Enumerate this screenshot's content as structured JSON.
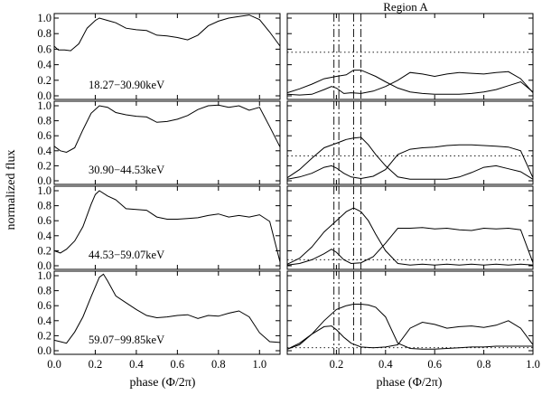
{
  "chart_data": {
    "type": "line",
    "layout": "4 rows x 2 columns",
    "ylabel": "normalized flux",
    "xlabel_left": "phase (Φ/2π)",
    "xlabel_right": "phase (Φ/2π)",
    "right_title": "Region A",
    "left_xticks": [
      "0.0",
      "0.2",
      "0.4",
      "0.6",
      "0.8",
      "1.0"
    ],
    "left_xtick_values": [
      0.0,
      0.2,
      0.4,
      0.6,
      0.8,
      1.0
    ],
    "right_xticks": [
      "0.2",
      "0.4",
      "0.6",
      "0.8",
      "1.0"
    ],
    "right_xtick_values": [
      0.2,
      0.4,
      0.6,
      0.8,
      1.0
    ],
    "yticks": [
      "0.0",
      "0.2",
      "0.4",
      "0.6",
      "0.8",
      "1.0"
    ],
    "ytick_values": [
      0.0,
      0.2,
      0.4,
      0.6,
      0.8,
      1.0
    ],
    "left_xlim": [
      0.0,
      1.1
    ],
    "right_xlim": [
      0.0,
      1.0
    ],
    "ylim": [
      0.0,
      1.05
    ],
    "vlines_dashed": [
      0.19,
      0.21,
      0.27,
      0.3
    ],
    "panels": [
      {
        "energy_label": "18.27−30.90keV",
        "pulse": {
          "x": [
            0.0,
            0.02,
            0.05,
            0.08,
            0.12,
            0.16,
            0.2,
            0.22,
            0.26,
            0.3,
            0.35,
            0.4,
            0.45,
            0.5,
            0.55,
            0.6,
            0.65,
            0.7,
            0.75,
            0.8,
            0.85,
            0.9,
            0.95,
            1.0,
            1.05,
            1.1
          ],
          "y": [
            0.64,
            0.59,
            0.59,
            0.58,
            0.67,
            0.87,
            0.97,
            1.0,
            0.97,
            0.94,
            0.87,
            0.85,
            0.84,
            0.78,
            0.77,
            0.75,
            0.72,
            0.78,
            0.9,
            0.96,
            1.0,
            1.02,
            1.04,
            0.98,
            0.82,
            0.64
          ]
        },
        "right_hline": 0.56,
        "component_a": {
          "x": [
            0.0,
            0.05,
            0.1,
            0.15,
            0.2,
            0.24,
            0.27,
            0.3,
            0.33,
            0.36,
            0.4,
            0.45,
            0.5,
            0.55,
            0.6,
            0.65,
            0.7,
            0.75,
            0.8,
            0.85,
            0.9,
            0.95,
            1.0
          ],
          "y": [
            0.04,
            0.09,
            0.15,
            0.22,
            0.25,
            0.27,
            0.33,
            0.33,
            0.29,
            0.25,
            0.18,
            0.1,
            0.05,
            0.03,
            0.02,
            0.02,
            0.02,
            0.03,
            0.05,
            0.08,
            0.13,
            0.18,
            0.05
          ]
        },
        "component_b": {
          "x": [
            0.0,
            0.05,
            0.1,
            0.15,
            0.18,
            0.2,
            0.23,
            0.26,
            0.3,
            0.35,
            0.4,
            0.45,
            0.5,
            0.55,
            0.6,
            0.65,
            0.7,
            0.75,
            0.8,
            0.85,
            0.9,
            0.95,
            1.0
          ],
          "y": [
            0.02,
            0.01,
            0.02,
            0.08,
            0.12,
            0.1,
            0.03,
            0.04,
            0.03,
            0.06,
            0.12,
            0.2,
            0.3,
            0.28,
            0.25,
            0.28,
            0.3,
            0.29,
            0.28,
            0.3,
            0.31,
            0.22,
            0.04
          ]
        }
      },
      {
        "energy_label": "30.90−44.53keV",
        "pulse": {
          "x": [
            0.0,
            0.03,
            0.06,
            0.1,
            0.14,
            0.18,
            0.22,
            0.26,
            0.3,
            0.35,
            0.4,
            0.45,
            0.5,
            0.55,
            0.6,
            0.65,
            0.7,
            0.75,
            0.8,
            0.85,
            0.9,
            0.95,
            1.0,
            1.05,
            1.1
          ],
          "y": [
            0.46,
            0.4,
            0.38,
            0.44,
            0.68,
            0.9,
            1.0,
            0.98,
            0.91,
            0.88,
            0.86,
            0.85,
            0.78,
            0.79,
            0.82,
            0.87,
            0.95,
            1.0,
            1.01,
            0.98,
            1.0,
            0.94,
            0.98,
            0.72,
            0.45
          ]
        },
        "right_hline": 0.33,
        "component_a": {
          "x": [
            0.0,
            0.05,
            0.1,
            0.15,
            0.2,
            0.24,
            0.27,
            0.3,
            0.33,
            0.36,
            0.4,
            0.45,
            0.5,
            0.55,
            0.6,
            0.65,
            0.7,
            0.75,
            0.8,
            0.85,
            0.9,
            0.95,
            1.0
          ],
          "y": [
            0.04,
            0.15,
            0.3,
            0.44,
            0.5,
            0.55,
            0.57,
            0.58,
            0.48,
            0.35,
            0.2,
            0.05,
            0.02,
            0.02,
            0.02,
            0.02,
            0.05,
            0.11,
            0.18,
            0.2,
            0.16,
            0.12,
            0.02
          ]
        },
        "component_b": {
          "x": [
            0.0,
            0.05,
            0.1,
            0.15,
            0.18,
            0.2,
            0.23,
            0.26,
            0.3,
            0.35,
            0.4,
            0.45,
            0.5,
            0.55,
            0.6,
            0.65,
            0.7,
            0.75,
            0.8,
            0.85,
            0.9,
            0.95,
            1.0
          ],
          "y": [
            0.02,
            0.05,
            0.1,
            0.18,
            0.2,
            0.17,
            0.1,
            0.05,
            0.03,
            0.06,
            0.15,
            0.35,
            0.42,
            0.44,
            0.45,
            0.47,
            0.48,
            0.48,
            0.47,
            0.46,
            0.45,
            0.4,
            0.04
          ]
        }
      },
      {
        "energy_label": "44.53−59.07keV",
        "pulse": {
          "x": [
            0.0,
            0.03,
            0.06,
            0.1,
            0.14,
            0.18,
            0.2,
            0.22,
            0.26,
            0.3,
            0.35,
            0.4,
            0.45,
            0.5,
            0.55,
            0.6,
            0.65,
            0.7,
            0.75,
            0.8,
            0.85,
            0.9,
            0.95,
            1.0,
            1.05,
            1.1
          ],
          "y": [
            0.2,
            0.17,
            0.22,
            0.33,
            0.52,
            0.82,
            0.95,
            1.0,
            0.93,
            0.88,
            0.76,
            0.75,
            0.74,
            0.65,
            0.62,
            0.62,
            0.63,
            0.64,
            0.67,
            0.69,
            0.65,
            0.67,
            0.65,
            0.68,
            0.59,
            0.05
          ]
        },
        "right_hline": 0.08,
        "component_a": {
          "x": [
            0.0,
            0.05,
            0.1,
            0.15,
            0.2,
            0.24,
            0.27,
            0.3,
            0.33,
            0.36,
            0.4,
            0.45,
            0.5,
            0.55,
            0.6,
            0.65,
            0.7,
            0.75,
            0.8,
            0.85,
            0.9,
            0.95,
            1.0
          ],
          "y": [
            0.02,
            0.1,
            0.25,
            0.45,
            0.6,
            0.72,
            0.77,
            0.72,
            0.6,
            0.42,
            0.2,
            0.03,
            0.01,
            0.02,
            0.01,
            0.02,
            0.01,
            0.02,
            0.01,
            0.02,
            0.01,
            0.02,
            0.01
          ]
        },
        "component_b": {
          "x": [
            0.0,
            0.05,
            0.1,
            0.15,
            0.18,
            0.2,
            0.23,
            0.26,
            0.3,
            0.35,
            0.4,
            0.45,
            0.5,
            0.55,
            0.6,
            0.65,
            0.7,
            0.75,
            0.8,
            0.85,
            0.9,
            0.95,
            1.0
          ],
          "y": [
            0.01,
            0.03,
            0.08,
            0.16,
            0.22,
            0.18,
            0.08,
            0.03,
            0.04,
            0.12,
            0.3,
            0.5,
            0.5,
            0.51,
            0.49,
            0.5,
            0.48,
            0.47,
            0.5,
            0.49,
            0.5,
            0.48,
            0.04
          ]
        }
      },
      {
        "energy_label": "59.07−99.85keV",
        "pulse": {
          "x": [
            0.0,
            0.03,
            0.06,
            0.1,
            0.14,
            0.18,
            0.22,
            0.24,
            0.26,
            0.3,
            0.35,
            0.4,
            0.45,
            0.5,
            0.55,
            0.6,
            0.65,
            0.7,
            0.75,
            0.8,
            0.85,
            0.9,
            0.95,
            1.0,
            1.05,
            1.1
          ],
          "y": [
            0.14,
            0.12,
            0.1,
            0.25,
            0.45,
            0.72,
            0.98,
            1.02,
            0.93,
            0.73,
            0.64,
            0.55,
            0.47,
            0.44,
            0.45,
            0.47,
            0.48,
            0.43,
            0.47,
            0.46,
            0.5,
            0.53,
            0.45,
            0.24,
            0.12,
            0.11
          ]
        },
        "right_hline": 0.04,
        "component_a": {
          "x": [
            0.0,
            0.05,
            0.1,
            0.15,
            0.2,
            0.24,
            0.27,
            0.3,
            0.33,
            0.36,
            0.4,
            0.45,
            0.5,
            0.55,
            0.6,
            0.65,
            0.7,
            0.75,
            0.8,
            0.85,
            0.9,
            0.95,
            1.0
          ],
          "y": [
            0.02,
            0.08,
            0.22,
            0.4,
            0.55,
            0.6,
            0.62,
            0.62,
            0.61,
            0.58,
            0.45,
            0.1,
            0.03,
            0.02,
            0.02,
            0.03,
            0.04,
            0.05,
            0.05,
            0.06,
            0.06,
            0.06,
            0.06
          ]
        },
        "component_b": {
          "x": [
            0.0,
            0.05,
            0.1,
            0.15,
            0.18,
            0.2,
            0.23,
            0.26,
            0.3,
            0.35,
            0.4,
            0.45,
            0.5,
            0.55,
            0.6,
            0.65,
            0.7,
            0.75,
            0.8,
            0.85,
            0.9,
            0.95,
            1.0
          ],
          "y": [
            0.02,
            0.1,
            0.22,
            0.32,
            0.33,
            0.28,
            0.18,
            0.1,
            0.05,
            0.04,
            0.05,
            0.08,
            0.3,
            0.38,
            0.35,
            0.3,
            0.32,
            0.33,
            0.31,
            0.34,
            0.4,
            0.3,
            0.08
          ]
        }
      }
    ]
  }
}
